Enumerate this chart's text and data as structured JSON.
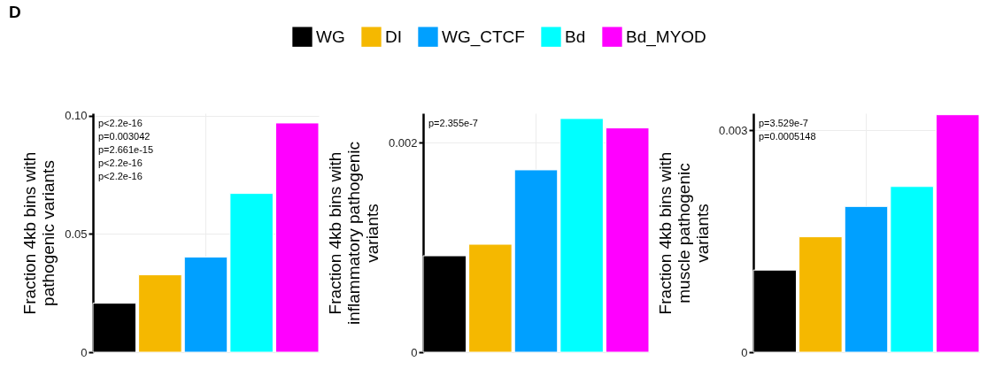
{
  "chart_data": [
    {
      "type": "bar",
      "title": "D",
      "categories": [
        null
      ],
      "ylabel": "Fraction 4kb bins with\npathogenic variants",
      "legend": "top",
      "grid": true,
      "ylim": [
        0,
        0.101
      ],
      "yticks": [
        0,
        0.05,
        {
          "value": 0.1,
          "label": "0.10"
        }
      ],
      "series": [
        {
          "name": "WG",
          "color": "#000000",
          "values": [
            0.0207
          ]
        },
        {
          "name": "DI",
          "color": "#f5b800",
          "values": [
            0.0327
          ]
        },
        {
          "name": "WG_CTCF",
          "color": "#00a0ff",
          "values": [
            0.0402
          ]
        },
        {
          "name": "Bd",
          "color": "#00ffff",
          "values": [
            0.0671
          ]
        },
        {
          "name": "Bd_MYOD",
          "color": "#ff00ff",
          "values": [
            0.0969
          ]
        }
      ],
      "annotations": [
        "p<2.2e-16",
        "p=0.003042",
        "p=2.661e-15",
        "p<2.2e-16",
        "p<2.2e-16"
      ]
    },
    {
      "type": "bar",
      "categories": [
        null
      ],
      "ylabel": "Fraction 4kb bins with\ninflammatory pathogenic\nvariants",
      "grid": true,
      "ylim": [
        0,
        0.00228
      ],
      "yticks": [
        0,
        0.002
      ],
      "series": [
        {
          "color": "#000000",
          "values": [
            0.00092
          ]
        },
        {
          "color": "#f5b800",
          "values": [
            0.00103
          ]
        },
        {
          "color": "#00a0ff",
          "values": [
            0.00174
          ]
        },
        {
          "color": "#00ffff",
          "values": [
            0.00223
          ]
        },
        {
          "color": "#ff00ff",
          "values": [
            0.00214
          ]
        }
      ],
      "annotations": [
        "p=2.355e-7"
      ]
    },
    {
      "type": "bar",
      "categories": [
        null
      ],
      "ylabel": "Fraction 4kb bins with\nmuscle pathogenic\nvariants",
      "grid": true,
      "ylim": [
        0,
        0.00323
      ],
      "yticks": [
        0,
        0.003
      ],
      "series": [
        {
          "color": "#000000",
          "values": [
            0.00111
          ]
        },
        {
          "color": "#f5b800",
          "values": [
            0.00156
          ]
        },
        {
          "color": "#00a0ff",
          "values": [
            0.00197
          ]
        },
        {
          "color": "#00ffff",
          "values": [
            0.00224
          ]
        },
        {
          "color": "#ff00ff",
          "values": [
            0.00321
          ]
        }
      ],
      "annotations": [
        "p=3.529e-7",
        "p=0.0005148"
      ]
    }
  ]
}
